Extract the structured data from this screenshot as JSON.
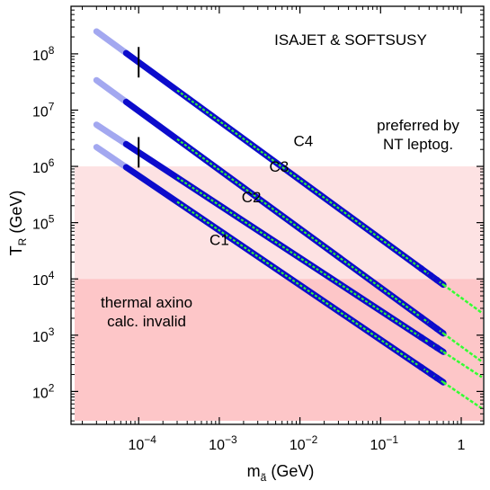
{
  "chart_data": {
    "type": "line",
    "title": "ISAJET & SOFTSUSY",
    "xlabel": "m_ã (GeV)",
    "ylabel": "T_R (GeV)",
    "xscale": "log",
    "yscale": "log",
    "xlim": [
      1.45e-05,
      1.9
    ],
    "ylim": [
      26,
      700000000
    ],
    "xticks": [
      {
        "value": 0.0001,
        "mant": "10",
        "exp": "−4"
      },
      {
        "value": 0.001,
        "mant": "10",
        "exp": "−3"
      },
      {
        "value": 0.01,
        "mant": "10",
        "exp": "−2"
      },
      {
        "value": 0.1,
        "mant": "10",
        "exp": "−1"
      },
      {
        "value": 1,
        "mant": "1",
        "exp": ""
      }
    ],
    "yticks": [
      {
        "value": 100,
        "mant": "10",
        "exp": "2"
      },
      {
        "value": 1000,
        "mant": "10",
        "exp": "3"
      },
      {
        "value": 10000,
        "mant": "10",
        "exp": "4"
      },
      {
        "value": 100000,
        "mant": "10",
        "exp": "5"
      },
      {
        "value": 1000000,
        "mant": "10",
        "exp": "6"
      },
      {
        "value": 10000000,
        "mant": "10",
        "exp": "7"
      },
      {
        "value": 100000000,
        "mant": "10",
        "exp": "8"
      }
    ],
    "regions": [
      {
        "label": "preferred by\nNT leptog.",
        "y_range": [
          10000,
          1000000
        ],
        "color": "#fde2e3"
      },
      {
        "label": "thermal axino\ncalc. invalid",
        "y_range": [
          26,
          10000
        ],
        "color": "#fdc6c8"
      }
    ],
    "series": [
      {
        "name": "C4",
        "label_at": [
          0.011,
          2300000
        ],
        "x_range": [
          3e-05,
          1.8
        ],
        "points": [
          [
            3e-05,
            250000000
          ],
          [
            1.8,
            2500
          ]
        ],
        "dark_from": 7e-05,
        "green_from": 0.0003,
        "blue_to": 0.6,
        "marker_x": 0.0001
      },
      {
        "name": "C3",
        "label_at": [
          0.0055,
          800000
        ],
        "x_range": [
          3e-05,
          1.8
        ],
        "points": [
          [
            3e-05,
            34000000
          ],
          [
            1.8,
            340
          ]
        ],
        "dark_from": 7e-05,
        "green_from": 0.0003,
        "blue_to": 0.6,
        "marker_x": null
      },
      {
        "name": "C2",
        "label_at": [
          0.0025,
          230000
        ],
        "x_range": [
          3e-05,
          1.8
        ],
        "points": [
          [
            3e-05,
            5500000
          ],
          [
            1.8,
            180
          ]
        ],
        "dark_from": 7e-05,
        "green_from": 0.0003,
        "blue_to": 0.6,
        "marker_x": 0.0001
      },
      {
        "name": "C1",
        "label_at": [
          0.001,
          40000
        ],
        "x_range": [
          3e-05,
          1.8
        ],
        "points": [
          [
            3e-05,
            2200000
          ],
          [
            1.8,
            50
          ]
        ],
        "dark_from": 7e-05,
        "green_from": 0.0003,
        "blue_to": 0.6,
        "marker_x": null
      }
    ],
    "colors": {
      "light": "#a3a8f0",
      "dark": "#0c0ccc",
      "green": "#33ff33"
    },
    "grid": false,
    "legend": "none"
  }
}
